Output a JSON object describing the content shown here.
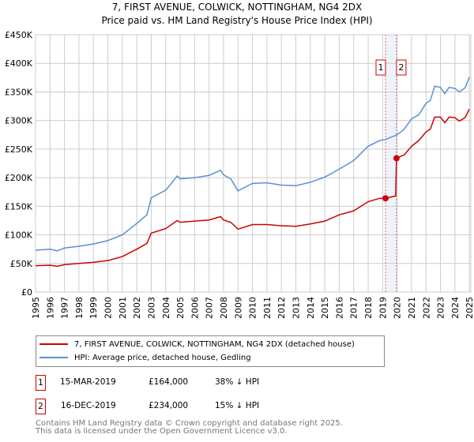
{
  "title": "7, FIRST AVENUE, COLWICK, NOTTINGHAM, NG4 2DX",
  "subtitle": "Price paid vs. HM Land Registry's House Price Index (HPI)",
  "chart_data": {
    "type": "line",
    "title": "7, FIRST AVENUE, COLWICK, NOTTINGHAM, NG4 2DX",
    "subtitle": "Price paid vs. HM Land Registry's House Price Index (HPI)",
    "xlim": [
      1995,
      2025.1
    ],
    "ylim": [
      0,
      450000
    ],
    "xticks": [
      "1995",
      "1996",
      "1997",
      "1998",
      "1999",
      "2000",
      "2001",
      "2002",
      "2003",
      "2004",
      "2005",
      "2006",
      "2007",
      "2008",
      "2009",
      "2010",
      "2011",
      "2012",
      "2013",
      "2014",
      "2015",
      "2016",
      "2017",
      "2018",
      "2019",
      "2020",
      "2021",
      "2022",
      "2023",
      "2024",
      "2025"
    ],
    "yticks": [
      {
        "v": 0,
        "l": "£0"
      },
      {
        "v": 50000,
        "l": "£50K"
      },
      {
        "v": 100000,
        "l": "£100K"
      },
      {
        "v": 150000,
        "l": "£150K"
      },
      {
        "v": 200000,
        "l": "£200K"
      },
      {
        "v": 250000,
        "l": "£250K"
      },
      {
        "v": 300000,
        "l": "£300K"
      },
      {
        "v": 350000,
        "l": "£350K"
      },
      {
        "v": 400000,
        "l": "£400K"
      },
      {
        "v": 450000,
        "l": "£450K"
      }
    ],
    "grid": true,
    "series": [
      {
        "name": "7, FIRST AVENUE, COLWICK, NOTTINGHAM, NG4 2DX (detached house)",
        "color": "#cc0000",
        "points": [
          [
            1995,
            46000
          ],
          [
            1996,
            47000
          ],
          [
            1996.5,
            45000
          ],
          [
            1997,
            48000
          ],
          [
            1998,
            50000
          ],
          [
            1999,
            52000
          ],
          [
            2000,
            55000
          ],
          [
            2001,
            62000
          ],
          [
            2002,
            75000
          ],
          [
            2002.7,
            85000
          ],
          [
            2003,
            103000
          ],
          [
            2004,
            111000
          ],
          [
            2004.8,
            125000
          ],
          [
            2005,
            122000
          ],
          [
            2006,
            124000
          ],
          [
            2007,
            126000
          ],
          [
            2007.8,
            132000
          ],
          [
            2008,
            126000
          ],
          [
            2008.5,
            122000
          ],
          [
            2009,
            110000
          ],
          [
            2010,
            118000
          ],
          [
            2011,
            118000
          ],
          [
            2012,
            116000
          ],
          [
            2013,
            115000
          ],
          [
            2014,
            119000
          ],
          [
            2015,
            124000
          ],
          [
            2016,
            135000
          ],
          [
            2017,
            142000
          ],
          [
            2018,
            158000
          ],
          [
            2018.8,
            164000
          ],
          [
            2019.2,
            164000
          ],
          [
            2019.9,
            168000
          ],
          [
            2019.96,
            234000
          ],
          [
            2020.5,
            240000
          ],
          [
            2021,
            255000
          ],
          [
            2021.5,
            265000
          ],
          [
            2022,
            280000
          ],
          [
            2022.3,
            285000
          ],
          [
            2022.6,
            306000
          ],
          [
            2023,
            306000
          ],
          [
            2023.3,
            296000
          ],
          [
            2023.6,
            306000
          ],
          [
            2024,
            305000
          ],
          [
            2024.3,
            299000
          ],
          [
            2024.7,
            305000
          ],
          [
            2025,
            320000
          ]
        ]
      },
      {
        "name": "HPI: Average price, detached house, Gedling",
        "color": "#5b8fd4",
        "points": [
          [
            1995,
            73000
          ],
          [
            1996,
            75000
          ],
          [
            1996.5,
            72000
          ],
          [
            1997,
            77000
          ],
          [
            1998,
            80000
          ],
          [
            1999,
            84000
          ],
          [
            2000,
            90000
          ],
          [
            2001,
            100000
          ],
          [
            2002,
            120000
          ],
          [
            2002.7,
            135000
          ],
          [
            2003,
            165000
          ],
          [
            2004,
            178000
          ],
          [
            2004.8,
            203000
          ],
          [
            2005,
            198000
          ],
          [
            2006,
            200000
          ],
          [
            2007,
            204000
          ],
          [
            2007.8,
            213000
          ],
          [
            2008,
            205000
          ],
          [
            2008.5,
            198000
          ],
          [
            2009,
            177000
          ],
          [
            2010,
            190000
          ],
          [
            2011,
            191000
          ],
          [
            2012,
            187000
          ],
          [
            2013,
            186000
          ],
          [
            2014,
            192000
          ],
          [
            2015,
            201000
          ],
          [
            2016,
            215000
          ],
          [
            2017,
            230000
          ],
          [
            2018,
            255000
          ],
          [
            2018.8,
            265000
          ],
          [
            2019.2,
            267000
          ],
          [
            2020,
            275000
          ],
          [
            2020.5,
            285000
          ],
          [
            2021,
            303000
          ],
          [
            2021.5,
            310000
          ],
          [
            2022,
            330000
          ],
          [
            2022.3,
            335000
          ],
          [
            2022.6,
            360000
          ],
          [
            2023,
            358000
          ],
          [
            2023.3,
            347000
          ],
          [
            2023.6,
            358000
          ],
          [
            2024,
            356000
          ],
          [
            2024.3,
            350000
          ],
          [
            2024.7,
            357000
          ],
          [
            2025,
            376000
          ]
        ]
      }
    ],
    "transactions": [
      {
        "label": "1",
        "x": 2019.2,
        "y": 164000
      },
      {
        "label": "2",
        "x": 2019.96,
        "y": 234000
      }
    ]
  },
  "legend": {
    "red": "7, FIRST AVENUE, COLWICK, NOTTINGHAM, NG4 2DX (detached house)",
    "blue": "HPI: Average price, detached house, Gedling"
  },
  "table": [
    {
      "num": "1",
      "date": "15-MAR-2019",
      "price": "£164,000",
      "hpi": "38% ↓ HPI"
    },
    {
      "num": "2",
      "date": "16-DEC-2019",
      "price": "£234,000",
      "hpi": "15% ↓ HPI"
    }
  ],
  "footer": {
    "line1": "Contains HM Land Registry data © Crown copyright and database right 2025.",
    "line2": "This data is licensed under the Open Government Licence v3.0."
  }
}
